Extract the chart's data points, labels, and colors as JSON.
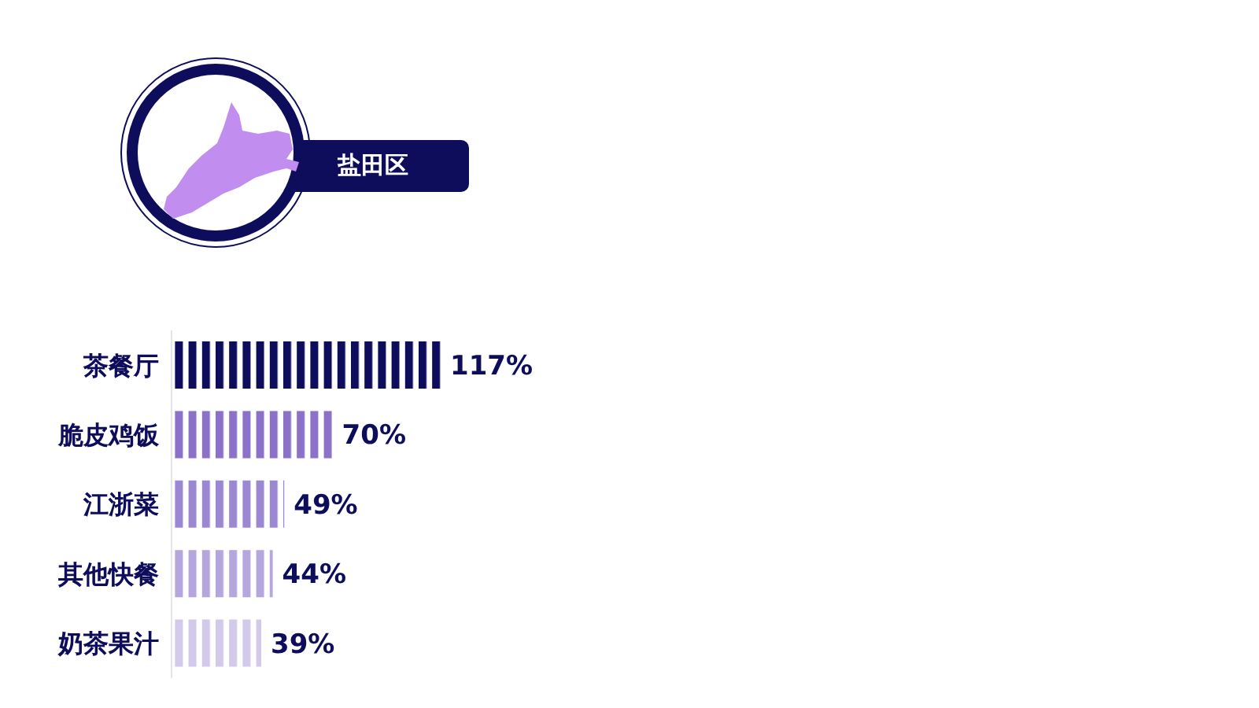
{
  "chart_data": {
    "type": "bar",
    "orientation": "horizontal",
    "title": "盐田区",
    "categories": [
      "茶餐厅",
      "脆皮鸡饭",
      "江浙菜",
      "其他快餐",
      "奶茶果汁"
    ],
    "values": [
      117,
      70,
      49,
      44,
      39
    ],
    "value_labels": [
      "117%",
      "70%",
      "49%",
      "44%",
      "39%"
    ],
    "colors": [
      "#0d0d5c",
      "#8b72c8",
      "#9b87d2",
      "#b5a6de",
      "#d3c9ea"
    ]
  }
}
